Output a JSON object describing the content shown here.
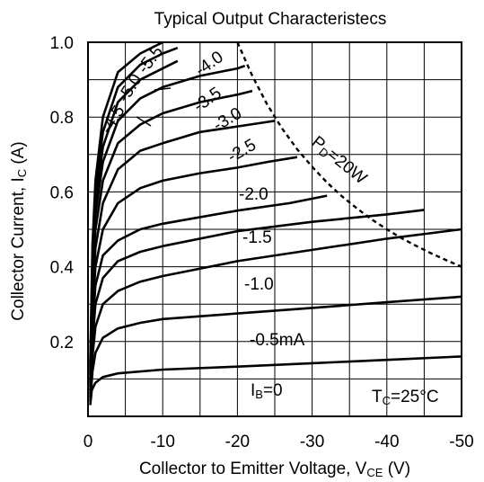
{
  "chart_data": {
    "type": "line",
    "title": "Typical Output Characteristecs",
    "xlabel": "Collector to Emitter Voltage, V",
    "xlabel_sub": "CE",
    "xlabel_unit": " (V)",
    "ylabel": "Collector Current, I",
    "ylabel_sub": "C",
    "ylabel_unit": " (A)",
    "xlim": [
      0,
      -50
    ],
    "ylim": [
      0,
      1.0
    ],
    "x_ticks": [
      {
        "value": 0,
        "label": "0"
      },
      {
        "value": -10,
        "label": "-10"
      },
      {
        "value": -20,
        "label": "-20"
      },
      {
        "value": -30,
        "label": "-30"
      },
      {
        "value": -40,
        "label": "-40"
      },
      {
        "value": -50,
        "label": "-50"
      }
    ],
    "y_ticks": [
      {
        "value": 0.2,
        "label": "0.2"
      },
      {
        "value": 0.4,
        "label": "0.4"
      },
      {
        "value": 0.6,
        "label": "0.6"
      },
      {
        "value": 0.8,
        "label": "0.8"
      },
      {
        "value": 1.0,
        "label": "1.0"
      }
    ],
    "grid": true,
    "condition": {
      "main": "T",
      "sub": "C",
      "rest": "=25°C"
    },
    "pd_label": {
      "main": "P",
      "sub": "D",
      "rest": "=20W"
    },
    "series": [
      {
        "name": "I_B=0",
        "label": "=0",
        "label_pre": "I",
        "label_sub": "B",
        "points": [
          [
            -0.3,
            0.03
          ],
          [
            -0.5,
            0.07
          ],
          [
            -1,
            0.09
          ],
          [
            -2,
            0.105
          ],
          [
            -4,
            0.115
          ],
          [
            -10,
            0.125
          ],
          [
            -20,
            0.133
          ],
          [
            -30,
            0.142
          ],
          [
            -40,
            0.151
          ],
          [
            -50,
            0.16
          ]
        ]
      },
      {
        "name": "-0.5mA",
        "label": "-0.5mA",
        "points": [
          [
            -0.3,
            0.04
          ],
          [
            -0.6,
            0.12
          ],
          [
            -1,
            0.17
          ],
          [
            -2,
            0.21
          ],
          [
            -4,
            0.235
          ],
          [
            -7,
            0.25
          ],
          [
            -10,
            0.26
          ],
          [
            -20,
            0.275
          ],
          [
            -30,
            0.29
          ],
          [
            -40,
            0.305
          ],
          [
            -50,
            0.32
          ]
        ]
      },
      {
        "name": "-1.0",
        "label": "-1.0",
        "points": [
          [
            -0.3,
            0.05
          ],
          [
            -0.6,
            0.16
          ],
          [
            -1,
            0.24
          ],
          [
            -2,
            0.3
          ],
          [
            -4,
            0.335
          ],
          [
            -7,
            0.36
          ],
          [
            -10,
            0.375
          ],
          [
            -20,
            0.415
          ],
          [
            -30,
            0.445
          ],
          [
            -40,
            0.475
          ],
          [
            -50,
            0.5
          ]
        ]
      },
      {
        "name": "-1.5",
        "label": "-1.5",
        "points": [
          [
            -0.3,
            0.06
          ],
          [
            -0.6,
            0.2
          ],
          [
            -1,
            0.3
          ],
          [
            -2,
            0.37
          ],
          [
            -4,
            0.415
          ],
          [
            -7,
            0.44
          ],
          [
            -10,
            0.455
          ],
          [
            -20,
            0.495
          ],
          [
            -30,
            0.52
          ],
          [
            -40,
            0.54
          ],
          [
            -45,
            0.552
          ]
        ]
      },
      {
        "name": "-2.0",
        "label": "-2.0",
        "points": [
          [
            -0.3,
            0.07
          ],
          [
            -0.6,
            0.24
          ],
          [
            -1,
            0.35
          ],
          [
            -2,
            0.43
          ],
          [
            -4,
            0.47
          ],
          [
            -7,
            0.5
          ],
          [
            -10,
            0.515
          ],
          [
            -20,
            0.55
          ],
          [
            -27,
            0.57
          ],
          [
            -32,
            0.59
          ]
        ]
      },
      {
        "name": "-2.5",
        "label": "-2.5",
        "points": [
          [
            -0.3,
            0.08
          ],
          [
            -0.6,
            0.28
          ],
          [
            -1,
            0.4
          ],
          [
            -2,
            0.5
          ],
          [
            -4,
            0.57
          ],
          [
            -7,
            0.61
          ],
          [
            -10,
            0.63
          ],
          [
            -15,
            0.65
          ],
          [
            -20,
            0.665
          ],
          [
            -24,
            0.68
          ],
          [
            -28,
            0.693
          ]
        ]
      },
      {
        "name": "-3.0",
        "label": "-3.0",
        "points": [
          [
            -0.3,
            0.09
          ],
          [
            -0.6,
            0.31
          ],
          [
            -1,
            0.45
          ],
          [
            -2,
            0.57
          ],
          [
            -4,
            0.66
          ],
          [
            -7,
            0.71
          ],
          [
            -10,
            0.73
          ],
          [
            -15,
            0.76
          ],
          [
            -20,
            0.775
          ],
          [
            -25,
            0.79
          ]
        ]
      },
      {
        "name": "-3.5",
        "label": "-3.5",
        "points": [
          [
            -0.3,
            0.1
          ],
          [
            -0.6,
            0.34
          ],
          [
            -1,
            0.5
          ],
          [
            -2,
            0.63
          ],
          [
            -4,
            0.73
          ],
          [
            -7,
            0.78
          ],
          [
            -10,
            0.81
          ],
          [
            -15,
            0.84
          ],
          [
            -20,
            0.86
          ],
          [
            -22,
            0.87
          ]
        ]
      },
      {
        "name": "-4.0",
        "label": "-4.0",
        "points": [
          [
            -0.3,
            0.11
          ],
          [
            -0.6,
            0.37
          ],
          [
            -1,
            0.54
          ],
          [
            -2,
            0.68
          ],
          [
            -4,
            0.79
          ],
          [
            -7,
            0.85
          ],
          [
            -10,
            0.88
          ],
          [
            -15,
            0.91
          ],
          [
            -20,
            0.93
          ],
          [
            -21,
            0.937
          ]
        ]
      },
      {
        "name": "-4.5",
        "label": "-4.5",
        "points": [
          [
            -0.3,
            0.12
          ],
          [
            -0.6,
            0.4
          ],
          [
            -1,
            0.57
          ],
          [
            -2,
            0.72
          ],
          [
            -4,
            0.84
          ],
          [
            -7,
            0.9
          ],
          [
            -10,
            0.93
          ],
          [
            -12,
            0.95
          ]
        ]
      },
      {
        "name": "-5.0",
        "label": "-5.0",
        "points": [
          [
            -0.3,
            0.13
          ],
          [
            -0.6,
            0.43
          ],
          [
            -1,
            0.6
          ],
          [
            -2,
            0.76
          ],
          [
            -4,
            0.88
          ],
          [
            -7,
            0.94
          ],
          [
            -10,
            0.97
          ],
          [
            -12,
            0.985
          ]
        ]
      },
      {
        "name": "-5.5",
        "label": "-5.5",
        "points": [
          [
            -0.3,
            0.14
          ],
          [
            -0.6,
            0.46
          ],
          [
            -1,
            0.63
          ],
          [
            -2,
            0.8
          ],
          [
            -4,
            0.92
          ],
          [
            -7,
            0.97
          ],
          [
            -10,
            1.0
          ]
        ]
      }
    ],
    "pd_curve": [
      [
        -20,
        1.0
      ],
      [
        -22,
        0.91
      ],
      [
        -24,
        0.833
      ],
      [
        -26,
        0.769
      ],
      [
        -28,
        0.714
      ],
      [
        -30,
        0.667
      ],
      [
        -32,
        0.625
      ],
      [
        -34,
        0.588
      ],
      [
        -36,
        0.556
      ],
      [
        -38,
        0.526
      ],
      [
        -40,
        0.5
      ],
      [
        -42,
        0.476
      ],
      [
        -44,
        0.455
      ],
      [
        -46,
        0.435
      ],
      [
        -48,
        0.417
      ],
      [
        -50,
        0.4
      ]
    ]
  }
}
